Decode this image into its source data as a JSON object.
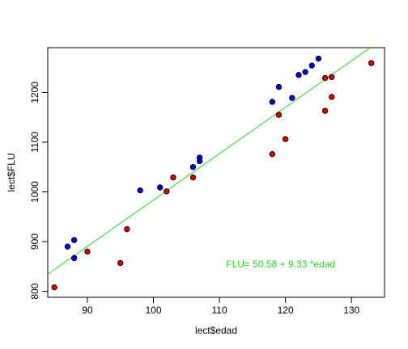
{
  "chart_data": {
    "type": "scatter",
    "xlabel": "lect$edad",
    "ylabel": "lect$FLU",
    "xlim": [
      84,
      135
    ],
    "ylim": [
      788,
      1290
    ],
    "x_ticks": [
      90,
      100,
      110,
      120,
      130
    ],
    "y_ticks": [
      800,
      900,
      1000,
      1100,
      1200
    ],
    "grid": false,
    "series": [
      {
        "color": "#0000cc",
        "points": [
          {
            "x": 87,
            "y": 890
          },
          {
            "x": 88,
            "y": 903
          },
          {
            "x": 88,
            "y": 867
          },
          {
            "x": 98,
            "y": 1003
          },
          {
            "x": 101,
            "y": 1009
          },
          {
            "x": 106,
            "y": 1050
          },
          {
            "x": 107,
            "y": 1069
          },
          {
            "x": 107,
            "y": 1062
          },
          {
            "x": 118,
            "y": 1181
          },
          {
            "x": 119,
            "y": 1211
          },
          {
            "x": 121,
            "y": 1189
          },
          {
            "x": 122,
            "y": 1235
          },
          {
            "x": 123,
            "y": 1241
          },
          {
            "x": 124,
            "y": 1254
          },
          {
            "x": 125,
            "y": 1268
          }
        ]
      },
      {
        "color": "#cc0000",
        "points": [
          {
            "x": 85,
            "y": 808
          },
          {
            "x": 90,
            "y": 880
          },
          {
            "x": 95,
            "y": 857
          },
          {
            "x": 96,
            "y": 925
          },
          {
            "x": 102,
            "y": 1001
          },
          {
            "x": 103,
            "y": 1029
          },
          {
            "x": 106,
            "y": 1029
          },
          {
            "x": 118,
            "y": 1076
          },
          {
            "x": 119,
            "y": 1155
          },
          {
            "x": 120,
            "y": 1106
          },
          {
            "x": 126,
            "y": 1229
          },
          {
            "x": 126,
            "y": 1163
          },
          {
            "x": 127,
            "y": 1231
          },
          {
            "x": 127,
            "y": 1191
          },
          {
            "x": 133,
            "y": 1259
          }
        ]
      }
    ],
    "regression": {
      "intercept": 50.58,
      "slope": 9.33,
      "color": "#33cc33",
      "label": "FLU= 50.58 + 9.33 *edad",
      "label_at": {
        "x": 111,
        "y": 848
      }
    }
  }
}
